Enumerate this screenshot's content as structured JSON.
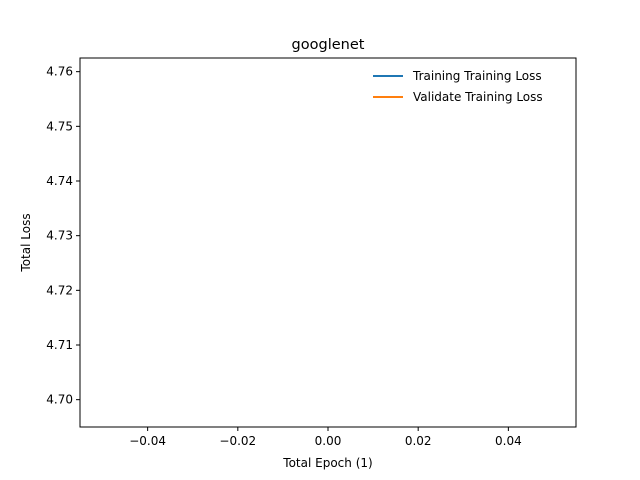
{
  "chart_data": {
    "type": "line",
    "title": "googlenet",
    "xlabel": "Total Epoch (1)",
    "ylabel": "Total Loss",
    "xlim": [
      -0.055,
      0.055
    ],
    "ylim": [
      4.695,
      4.7625
    ],
    "x_ticks": [
      -0.04,
      -0.02,
      0.0,
      0.02,
      0.04
    ],
    "x_tick_labels": [
      "−0.04",
      "−0.02",
      "0.00",
      "0.02",
      "0.04"
    ],
    "y_ticks": [
      4.7,
      4.71,
      4.72,
      4.73,
      4.74,
      4.75,
      4.76
    ],
    "y_tick_labels": [
      "4.70",
      "4.71",
      "4.72",
      "4.73",
      "4.74",
      "4.75",
      "4.76"
    ],
    "grid": false,
    "legend_position": "top-right",
    "series": [
      {
        "name": "Training Training Loss",
        "color": "#1f77b4",
        "x": [],
        "y": []
      },
      {
        "name": "Validate Training Loss",
        "color": "#ff7f0e",
        "x": [],
        "y": []
      }
    ]
  }
}
